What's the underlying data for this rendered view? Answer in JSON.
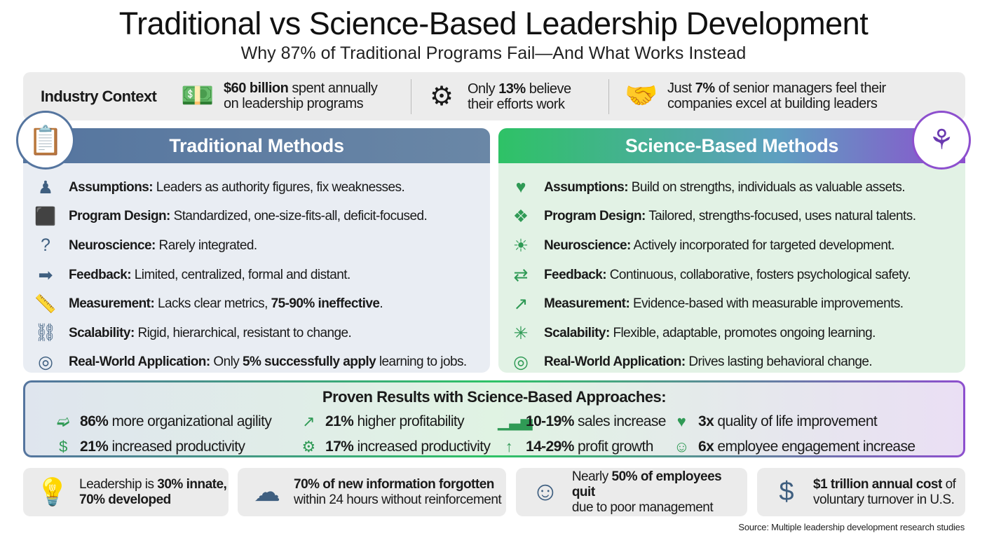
{
  "title": "Traditional vs Science-Based Leadership Development",
  "subtitle": "Why 87% of Traditional Programs Fail—And What Works Instead",
  "context": {
    "label": "Industry Context",
    "items": [
      {
        "icon": "money-stack-icon",
        "glyph": "💵",
        "parts": [
          {
            "t": "$60 billion",
            "b": true
          },
          {
            "t": " spent annually"
          },
          {
            "br": true
          },
          {
            "t": "on leadership programs"
          }
        ]
      },
      {
        "icon": "gears-icon",
        "glyph": "⚙",
        "parts": [
          {
            "t": "Only "
          },
          {
            "t": "13%",
            "b": true
          },
          {
            "t": " believe"
          },
          {
            "br": true
          },
          {
            "t": "their efforts work"
          }
        ]
      },
      {
        "icon": "handshake-growth-icon",
        "glyph": "🤝",
        "parts": [
          {
            "t": "Just "
          },
          {
            "t": "7%",
            "b": true
          },
          {
            "t": " of senior managers feel their"
          },
          {
            "br": true
          },
          {
            "t": "companies excel at building leaders"
          }
        ]
      }
    ]
  },
  "traditional": {
    "title": "Traditional Methods",
    "badge_icon": "clipboard-checklist-icon",
    "rows": [
      {
        "icon": "authority-figure-icon",
        "glyph": "♟",
        "parts": [
          {
            "t": "Assumptions:",
            "b": true
          },
          {
            "t": " Leaders as authority figures, fix weaknesses."
          }
        ]
      },
      {
        "icon": "puzzle-icon",
        "glyph": "⬛",
        "parts": [
          {
            "t": "Program Design:",
            "b": true
          },
          {
            "t": " Standardized, one-size-fits-all, deficit-focused."
          }
        ]
      },
      {
        "icon": "head-question-icon",
        "glyph": "?",
        "parts": [
          {
            "t": "Neuroscience:",
            "b": true
          },
          {
            "t": " Rarely integrated."
          }
        ]
      },
      {
        "icon": "arrow-right-icon",
        "glyph": "➡",
        "parts": [
          {
            "t": "Feedback:",
            "b": true
          },
          {
            "t": " Limited, centralized, formal and distant."
          }
        ]
      },
      {
        "icon": "ruler-icon",
        "glyph": "📏",
        "parts": [
          {
            "t": "Measurement:",
            "b": true
          },
          {
            "t": " Lacks clear metrics, "
          },
          {
            "t": "75-90% ineffective",
            "b": true
          },
          {
            "t": "."
          }
        ]
      },
      {
        "icon": "chain-link-icon",
        "glyph": "⛓",
        "parts": [
          {
            "t": "Scalability:",
            "b": true
          },
          {
            "t": " Rigid, hierarchical, resistant to change."
          }
        ]
      },
      {
        "icon": "target-icon",
        "glyph": "◎",
        "parts": [
          {
            "t": "Real-World Application:",
            "b": true
          },
          {
            "t": " Only "
          },
          {
            "t": "5% successfully apply",
            "b": true
          },
          {
            "t": " learning to jobs."
          }
        ]
      }
    ]
  },
  "science": {
    "title": "Science-Based Methods",
    "badge_icon": "brain-circuit-icon",
    "rows": [
      {
        "icon": "hands-heart-icon",
        "glyph": "♥",
        "parts": [
          {
            "t": "Assumptions:",
            "b": true
          },
          {
            "t": " Build on strengths, individuals as valuable assets."
          }
        ]
      },
      {
        "icon": "puzzle-icon",
        "glyph": "❖",
        "parts": [
          {
            "t": "Program Design:",
            "b": true
          },
          {
            "t": " Tailored, strengths-focused, uses natural talents."
          }
        ]
      },
      {
        "icon": "lightbulb-brain-icon",
        "glyph": "☀",
        "parts": [
          {
            "t": "Neuroscience:",
            "b": true
          },
          {
            "t": " Actively incorporated for targeted development."
          }
        ]
      },
      {
        "icon": "exchange-arrows-icon",
        "glyph": "⇄",
        "parts": [
          {
            "t": "Feedback:",
            "b": true
          },
          {
            "t": " Continuous, collaborative, fosters psychological safety."
          }
        ]
      },
      {
        "icon": "bar-chart-growth-icon",
        "glyph": "↗",
        "parts": [
          {
            "t": "Measurement:",
            "b": true
          },
          {
            "t": " Evidence-based with measurable improvements."
          }
        ]
      },
      {
        "icon": "network-icon",
        "glyph": "✳",
        "parts": [
          {
            "t": "Scalability:",
            "b": true
          },
          {
            "t": " Flexible, adaptable, promotes ongoing learning."
          }
        ]
      },
      {
        "icon": "target-icon",
        "glyph": "◎",
        "parts": [
          {
            "t": "Real-World Application:",
            "b": true
          },
          {
            "t": " Drives lasting behavioral change."
          }
        ]
      }
    ]
  },
  "results": {
    "title": "Proven Results with Science-Based Approaches:",
    "items": [
      {
        "icon": "running-person-icon",
        "glyph": "➫",
        "parts": [
          {
            "t": "86%",
            "b": true
          },
          {
            "t": " more organizational agility"
          }
        ]
      },
      {
        "icon": "coins-growth-icon",
        "glyph": "↗",
        "parts": [
          {
            "t": "21%",
            "b": true
          },
          {
            "t": " higher profitability"
          }
        ]
      },
      {
        "icon": "bar-chart-icon",
        "glyph": "▁▃▅",
        "parts": [
          {
            "t": "10-19%",
            "b": true
          },
          {
            "t": " sales increase"
          }
        ]
      },
      {
        "icon": "hand-heart-icon",
        "glyph": "♥",
        "parts": [
          {
            "t": "3x",
            "b": true
          },
          {
            "t": " quality of life improvement"
          }
        ]
      },
      {
        "icon": "coins-icon",
        "glyph": "$",
        "parts": [
          {
            "t": "21%",
            "b": true
          },
          {
            "t": " increased productivity"
          }
        ]
      },
      {
        "icon": "gear-arrow-icon",
        "glyph": "⚙",
        "parts": [
          {
            "t": "17%",
            "b": true
          },
          {
            "t": " increased productivity"
          }
        ]
      },
      {
        "icon": "money-arrow-icon",
        "glyph": "↑",
        "parts": [
          {
            "t": "14-29%",
            "b": true
          },
          {
            "t": " profit growth"
          }
        ]
      },
      {
        "icon": "team-thumbs-up-icon",
        "glyph": "☺",
        "parts": [
          {
            "t": "6x",
            "b": true
          },
          {
            "t": " employee engagement increase"
          }
        ]
      }
    ]
  },
  "facts": [
    {
      "icon": "lightbulb-icon",
      "glyph": "💡",
      "parts": [
        {
          "t": "Leadership is "
        },
        {
          "t": "30% innate,",
          "b": true
        },
        {
          "br": true
        },
        {
          "t": "70% developed",
          "b": true
        }
      ]
    },
    {
      "icon": "brain-fading-icon",
      "glyph": "☁",
      "parts": [
        {
          "t": "70% of new information forgotten",
          "b": true
        },
        {
          "br": true
        },
        {
          "t": "within 24 hours without reinforcement"
        }
      ]
    },
    {
      "icon": "employee-icon",
      "glyph": "☺",
      "parts": [
        {
          "t": "Nearly "
        },
        {
          "t": "50% of employees quit",
          "b": true
        },
        {
          "br": true
        },
        {
          "t": "due to poor management"
        }
      ]
    },
    {
      "icon": "money-bags-icon",
      "glyph": "$",
      "parts": [
        {
          "t": "$1 trillion annual cost",
          "b": true
        },
        {
          "t": " of"
        },
        {
          "br": true
        },
        {
          "t": "voluntary turnover in U.S."
        }
      ]
    }
  ],
  "source": "Source: Multiple leadership development research studies",
  "colors": {
    "traditional": "#55759f",
    "science_green": "#2ec266",
    "science_purple": "#8d4fce"
  }
}
